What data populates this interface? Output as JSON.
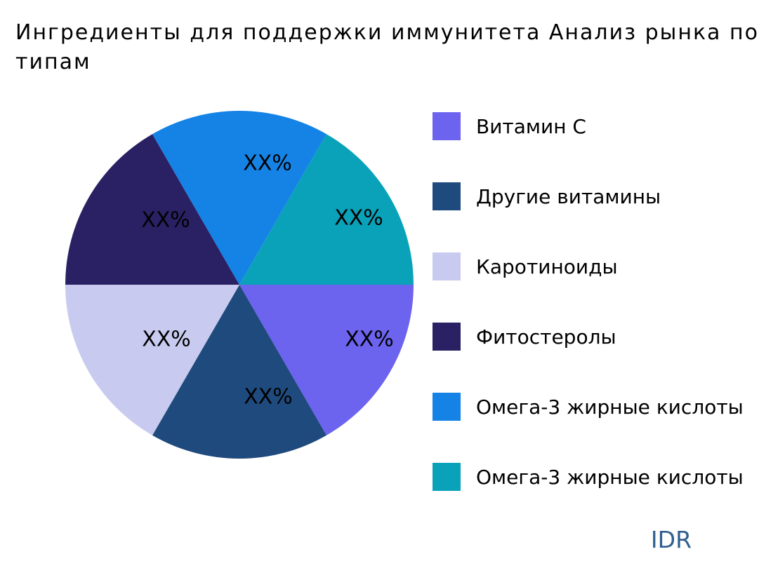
{
  "title": {
    "line1": "Ингредиенты для поддержки иммунитета Анализ рынка по",
    "line2": "типам"
  },
  "watermark": "IDR",
  "chart_data": {
    "type": "pie",
    "title": "Ингредиенты для поддержки иммунитета Анализ рынка по типам",
    "legend_position": "right",
    "start_angle_deg": 0,
    "direction": "clockwise",
    "slices": [
      {
        "label": "Витамин C",
        "value_label": "XX%",
        "visual_fraction": 0.1667,
        "color": "#6C63EE"
      },
      {
        "label": "Другие витамины",
        "value_label": "XX%",
        "visual_fraction": 0.1667,
        "color": "#1F4A7D"
      },
      {
        "label": "Каротиноиды",
        "value_label": "XX%",
        "visual_fraction": 0.1667,
        "color": "#C8CBEF"
      },
      {
        "label": "Фитостеролы",
        "value_label": "XX%",
        "visual_fraction": 0.1667,
        "color": "#2A2164"
      },
      {
        "label": "Омега-3 жирные кислоты",
        "value_label": "XX%",
        "visual_fraction": 0.1667,
        "color": "#1583E6"
      },
      {
        "label": "Омега-3 жирные кислоты",
        "value_label": "XX%",
        "visual_fraction": 0.1667,
        "color": "#09A2B9"
      }
    ]
  }
}
